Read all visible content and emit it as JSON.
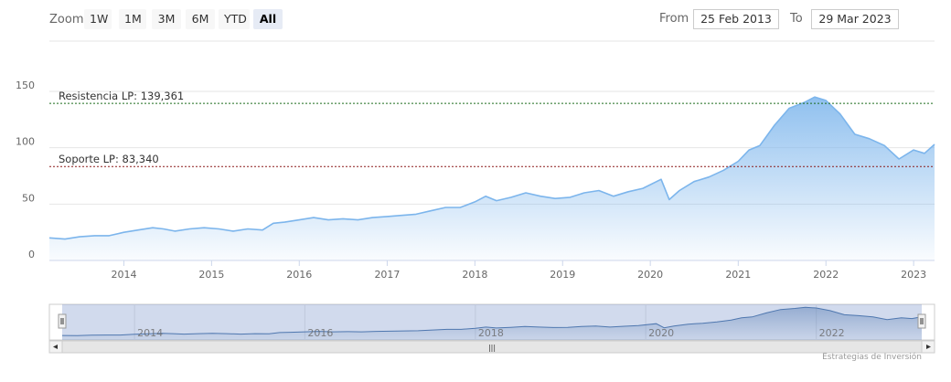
{
  "range_selector": {
    "zoom_label": "Zoom",
    "buttons": [
      {
        "label": "1W"
      },
      {
        "label": "1M"
      },
      {
        "label": "3M"
      },
      {
        "label": "6M"
      },
      {
        "label": "YTD"
      },
      {
        "label": "All",
        "active": true
      }
    ],
    "from_label": "From",
    "from_value": "25 Feb 2013",
    "to_label": "To",
    "to_value": "29 Mar 2023"
  },
  "chart_data": {
    "type": "area",
    "x_ticks": [
      "2014",
      "2015",
      "2016",
      "2017",
      "2018",
      "2019",
      "2020",
      "2021",
      "2022",
      "2023"
    ],
    "y_ticks": [
      0,
      50,
      100,
      150
    ],
    "ylim": [
      0,
      150
    ],
    "xlim": [
      "2013-02-25",
      "2023-03-29"
    ],
    "grid": true,
    "legend": "none",
    "series": [
      {
        "color": "#7cb5ec",
        "points": [
          [
            "2013-02-25",
            20
          ],
          [
            "2013-05-01",
            19
          ],
          [
            "2013-07-01",
            21
          ],
          [
            "2013-09-01",
            22
          ],
          [
            "2013-11-01",
            22
          ],
          [
            "2014-01-01",
            25
          ],
          [
            "2014-03-01",
            27
          ],
          [
            "2014-05-01",
            29
          ],
          [
            "2014-06-15",
            28
          ],
          [
            "2014-08-01",
            26
          ],
          [
            "2014-10-01",
            28
          ],
          [
            "2014-12-01",
            29
          ],
          [
            "2015-02-01",
            28
          ],
          [
            "2015-04-01",
            26
          ],
          [
            "2015-06-01",
            28
          ],
          [
            "2015-08-01",
            27
          ],
          [
            "2015-09-15",
            33
          ],
          [
            "2015-11-01",
            34
          ],
          [
            "2016-01-01",
            36
          ],
          [
            "2016-03-01",
            38
          ],
          [
            "2016-05-01",
            36
          ],
          [
            "2016-07-01",
            37
          ],
          [
            "2016-09-01",
            36
          ],
          [
            "2016-11-01",
            38
          ],
          [
            "2017-01-01",
            39
          ],
          [
            "2017-03-01",
            40
          ],
          [
            "2017-05-01",
            41
          ],
          [
            "2017-07-01",
            44
          ],
          [
            "2017-09-01",
            47
          ],
          [
            "2017-11-01",
            47
          ],
          [
            "2018-01-01",
            52
          ],
          [
            "2018-02-15",
            57
          ],
          [
            "2018-04-01",
            53
          ],
          [
            "2018-06-01",
            56
          ],
          [
            "2018-08-01",
            60
          ],
          [
            "2018-10-01",
            57
          ],
          [
            "2018-12-01",
            55
          ],
          [
            "2019-02-01",
            56
          ],
          [
            "2019-04-01",
            60
          ],
          [
            "2019-06-01",
            62
          ],
          [
            "2019-08-01",
            57
          ],
          [
            "2019-10-01",
            61
          ],
          [
            "2019-12-01",
            64
          ],
          [
            "2020-02-15",
            72
          ],
          [
            "2020-03-20",
            54
          ],
          [
            "2020-05-01",
            62
          ],
          [
            "2020-07-01",
            70
          ],
          [
            "2020-09-01",
            74
          ],
          [
            "2020-11-01",
            80
          ],
          [
            "2021-01-01",
            88
          ],
          [
            "2021-02-15",
            98
          ],
          [
            "2021-04-01",
            102
          ],
          [
            "2021-06-01",
            120
          ],
          [
            "2021-08-01",
            135
          ],
          [
            "2021-10-01",
            140
          ],
          [
            "2021-11-15",
            145
          ],
          [
            "2022-01-01",
            142
          ],
          [
            "2022-03-01",
            130
          ],
          [
            "2022-05-01",
            112
          ],
          [
            "2022-07-01",
            108
          ],
          [
            "2022-09-01",
            102
          ],
          [
            "2022-11-01",
            90
          ],
          [
            "2023-01-01",
            98
          ],
          [
            "2023-02-15",
            95
          ],
          [
            "2023-03-29",
            103
          ]
        ]
      }
    ],
    "plot_lines": [
      {
        "label": "Resistencia LP: 139,361",
        "value": 139.361,
        "color": "#1a6b1a"
      },
      {
        "label": "Soporte LP: 83,340",
        "value": 83.34,
        "color": "#8b1a1a"
      }
    ],
    "navigator": {
      "x_ticks": [
        "2014",
        "2016",
        "2018",
        "2020",
        "2022"
      ],
      "scrollbar_grip": "|||"
    },
    "credits": "Estrategias de Inversión"
  }
}
